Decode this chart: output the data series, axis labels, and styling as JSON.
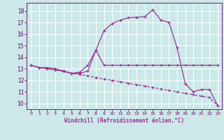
{
  "xlabel": "Windchill (Refroidissement éolien,°C)",
  "bg_color": "#cce8e8",
  "grid_color": "#ffffff",
  "line_color": "#993399",
  "xlim": [
    -0.5,
    23.5
  ],
  "ylim": [
    9.5,
    18.7
  ],
  "xticks": [
    0,
    1,
    2,
    3,
    4,
    5,
    6,
    7,
    8,
    9,
    10,
    11,
    12,
    13,
    14,
    15,
    16,
    17,
    18,
    19,
    20,
    21,
    22,
    23
  ],
  "yticks": [
    10,
    11,
    12,
    13,
    14,
    15,
    16,
    17,
    18
  ],
  "line1_x": [
    0,
    1,
    2,
    3,
    4,
    5,
    6,
    7,
    8,
    9,
    10,
    11,
    12,
    13,
    14,
    15,
    16,
    17,
    18,
    19,
    20,
    21,
    22,
    23
  ],
  "line1_y": [
    13.3,
    13.1,
    13.1,
    13.0,
    12.8,
    12.6,
    12.7,
    13.3,
    14.6,
    13.3,
    13.3,
    13.3,
    13.3,
    13.3,
    13.3,
    13.3,
    13.3,
    13.3,
    13.3,
    13.3,
    13.3,
    13.3,
    13.3,
    13.3
  ],
  "line2_x": [
    0,
    1,
    2,
    3,
    4,
    5,
    6,
    7,
    8,
    9,
    10,
    11,
    12,
    13,
    14,
    15,
    16,
    17,
    18,
    19,
    20,
    21,
    22,
    23
  ],
  "line2_y": [
    13.3,
    13.1,
    13.0,
    12.9,
    12.75,
    12.6,
    12.5,
    12.38,
    12.25,
    12.1,
    12.0,
    11.88,
    11.75,
    11.62,
    11.5,
    11.38,
    11.25,
    11.12,
    11.0,
    10.88,
    10.75,
    10.62,
    10.5,
    9.8
  ],
  "line3_x": [
    0,
    1,
    2,
    3,
    4,
    5,
    6,
    7,
    8,
    9,
    10,
    11,
    12,
    13,
    14,
    15,
    16,
    17,
    18,
    19,
    20,
    21,
    22,
    23
  ],
  "line3_y": [
    13.3,
    13.1,
    13.0,
    12.9,
    12.8,
    12.6,
    12.6,
    12.8,
    14.6,
    16.3,
    16.9,
    17.2,
    17.4,
    17.45,
    17.5,
    18.1,
    17.2,
    17.0,
    14.8,
    11.7,
    11.0,
    11.2,
    11.2,
    9.8
  ]
}
